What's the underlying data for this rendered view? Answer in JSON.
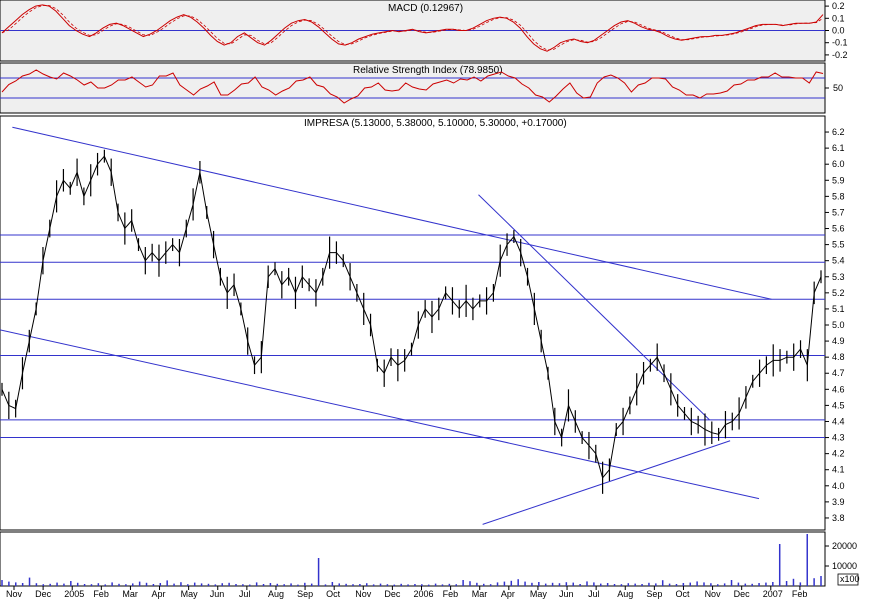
{
  "chart_data": [
    {
      "type": "line",
      "title": "MACD (0.12967)",
      "yticks": [
        "0.2",
        "0.1",
        "0.0",
        "-0.1",
        "-0.2"
      ],
      "ylim": [
        -0.25,
        0.25
      ],
      "zero_line": 0.0,
      "series": [
        {
          "values": [
            -0.02,
            0.03,
            0.08,
            0.13,
            0.17,
            0.2,
            0.21,
            0.2,
            0.16,
            0.1,
            0.04,
            0.0,
            -0.03,
            -0.05,
            -0.02,
            0.02,
            0.05,
            0.06,
            0.04,
            0.01,
            -0.02,
            -0.05,
            -0.03,
            0.0,
            0.04,
            0.08,
            0.11,
            0.13,
            0.11,
            0.07,
            0.02,
            -0.04,
            -0.09,
            -0.12,
            -0.1,
            -0.05,
            -0.02,
            -0.06,
            -0.1,
            -0.12,
            -0.08,
            -0.03,
            0.02,
            0.06,
            0.08,
            0.09,
            0.07,
            0.03,
            -0.02,
            -0.07,
            -0.11,
            -0.12,
            -0.1,
            -0.07,
            -0.05,
            -0.03,
            -0.02,
            -0.01,
            0.0,
            -0.01,
            0.0,
            0.01,
            -0.01,
            -0.02,
            -0.01,
            0.0,
            0.01,
            0.01,
            0.0,
            0.0,
            0.02,
            0.05,
            0.08,
            0.1,
            0.11,
            0.1,
            0.07,
            0.02,
            -0.05,
            -0.11,
            -0.15,
            -0.17,
            -0.14,
            -0.1,
            -0.08,
            -0.07,
            -0.09,
            -0.1,
            -0.08,
            -0.04,
            0.0,
            0.04,
            0.07,
            0.08,
            0.06,
            0.03,
            0.01,
            0.0,
            -0.02,
            -0.05,
            -0.07,
            -0.08,
            -0.07,
            -0.06,
            -0.05,
            -0.05,
            -0.04,
            -0.04,
            -0.03,
            -0.02,
            0.0,
            0.02,
            0.04,
            0.05,
            0.05,
            0.05,
            0.04,
            0.05,
            0.06,
            0.06,
            0.06,
            0.07,
            0.13
          ]
        }
      ]
    },
    {
      "type": "line",
      "title": "Relative Strength Index (78.9850)",
      "yticks": [
        "50"
      ],
      "ylim": [
        0,
        100
      ],
      "series": [
        {
          "values": [
            42,
            55,
            68,
            74,
            80,
            82,
            78,
            70,
            72,
            80,
            76,
            62,
            56,
            60,
            54,
            50,
            58,
            62,
            66,
            70,
            66,
            52,
            58,
            70,
            74,
            78,
            60,
            46,
            38,
            44,
            54,
            60,
            40,
            36,
            48,
            54,
            60,
            70,
            56,
            46,
            38,
            40,
            50,
            62,
            70,
            72,
            58,
            48,
            38,
            30,
            24,
            28,
            36,
            46,
            52,
            58,
            50,
            44,
            48,
            56,
            52,
            46,
            50,
            58,
            64,
            62,
            60,
            66,
            70,
            72,
            66,
            70,
            78,
            80,
            78,
            70,
            60,
            46,
            36,
            30,
            26,
            34,
            50,
            56,
            40,
            28,
            36,
            60,
            74,
            72,
            70,
            58,
            46,
            56,
            62,
            66,
            70,
            66,
            56,
            46,
            38,
            32,
            30,
            36,
            42,
            40,
            46,
            52,
            58,
            64,
            70,
            72,
            74,
            76,
            72,
            70,
            74,
            70,
            62,
            78,
            79
          ]
        }
      ]
    },
    {
      "type": "line",
      "title": "IMPRESA (5.13000, 5.38000, 5.10000, 5.30000, +0.17000)",
      "yticks": [
        "6.2",
        "6.1",
        "6.0",
        "5.9",
        "5.8",
        "5.7",
        "5.6",
        "5.5",
        "5.4",
        "5.3",
        "5.2",
        "5.1",
        "5.0",
        "4.9",
        "4.8",
        "4.7",
        "4.6",
        "4.5",
        "4.4",
        "4.3",
        "4.2",
        "4.1",
        "4.0",
        "3.9",
        "3.8"
      ],
      "ylim": [
        3.75,
        6.25
      ],
      "horizontal_levels": [
        5.56,
        5.39,
        5.16,
        4.81,
        4.41,
        4.3
      ],
      "trendlines": [
        {
          "x": [
            0.015,
            0.59
          ],
          "y": [
            6.23,
            5.56
          ]
        },
        {
          "x": [
            0.59,
            0.935
          ],
          "y": [
            5.56,
            5.16
          ]
        },
        {
          "x": [
            0.0,
            0.92
          ],
          "y": [
            4.97,
            3.92
          ]
        },
        {
          "x": [
            0.58,
            0.86
          ],
          "y": [
            5.81,
            4.41
          ]
        },
        {
          "x": [
            0.585,
            0.885
          ],
          "y": [
            3.76,
            4.28
          ]
        }
      ],
      "series": [
        {
          "name": "IMPRESA",
          "values": [
            4.6,
            4.5,
            4.48,
            4.7,
            4.9,
            5.1,
            5.4,
            5.6,
            5.8,
            5.9,
            5.85,
            5.95,
            5.8,
            5.9,
            6.0,
            6.05,
            5.95,
            5.7,
            5.6,
            5.65,
            5.5,
            5.4,
            5.45,
            5.4,
            5.45,
            5.5,
            5.45,
            5.6,
            5.75,
            5.95,
            5.7,
            5.5,
            5.3,
            5.2,
            5.25,
            5.1,
            4.9,
            4.75,
            4.8,
            5.3,
            5.35,
            5.25,
            5.3,
            5.2,
            5.3,
            5.25,
            5.2,
            5.3,
            5.45,
            5.45,
            5.4,
            5.3,
            5.2,
            5.1,
            5.0,
            4.75,
            4.7,
            4.8,
            4.75,
            4.78,
            4.85,
            5.0,
            5.1,
            5.05,
            5.1,
            5.2,
            5.15,
            5.1,
            5.15,
            5.1,
            5.15,
            5.15,
            5.2,
            5.4,
            5.5,
            5.55,
            5.45,
            5.3,
            5.1,
            4.9,
            4.7,
            4.4,
            4.3,
            4.5,
            4.4,
            4.3,
            4.25,
            4.2,
            4.05,
            4.1,
            4.35,
            4.4,
            4.5,
            4.6,
            4.7,
            4.75,
            4.8,
            4.7,
            4.6,
            4.5,
            4.45,
            4.4,
            4.38,
            4.35,
            4.33,
            4.32,
            4.38,
            4.4,
            4.45,
            4.55,
            4.65,
            4.7,
            4.75,
            4.78,
            4.78,
            4.8,
            4.8,
            4.85,
            4.75,
            5.2,
            5.3
          ]
        }
      ]
    },
    {
      "type": "bar",
      "title": "",
      "yticks": [
        "20000",
        "10000"
      ],
      "ylim": [
        0,
        27000
      ],
      "unit_label": "x100",
      "values": [
        3000,
        2200,
        1800,
        1500,
        4200,
        1400,
        900,
        1100,
        1700,
        1200,
        2500,
        1600,
        1000,
        900,
        1400,
        800,
        1800,
        1100,
        900,
        1300,
        2200,
        1600,
        1000,
        1500,
        2800,
        1200,
        1900,
        900,
        1700,
        1300,
        1100,
        800,
        1400,
        1600,
        1000,
        900,
        700,
        1800,
        1000,
        1500,
        1100,
        900,
        1300,
        700,
        1600,
        1200,
        14000,
        800,
        2000,
        1300,
        1100,
        900,
        1000,
        1400,
        800,
        1200,
        900,
        700,
        1100,
        800,
        1000,
        900,
        700,
        1200,
        800,
        1100,
        900,
        3000,
        2400,
        1600,
        1100,
        900,
        1800,
        2200,
        2600,
        3400,
        2200,
        1600,
        2000,
        1200,
        1600,
        1400,
        1900,
        1700,
        1000,
        2300,
        1800,
        1200,
        1500,
        1000,
        900,
        1400,
        1200,
        1000,
        1600,
        1300,
        2900,
        1200,
        1000,
        1500,
        1700,
        2300,
        1800,
        1400,
        900,
        1300,
        3000,
        1700,
        1200,
        1100,
        1500,
        1700,
        2000,
        21000,
        2500,
        3600,
        1800,
        26000,
        3900,
        5000
      ],
      "xticks": [
        "Nov",
        "Dec",
        "2005",
        "Feb",
        "Mar",
        "Apr",
        "May",
        "Jun",
        "Jul",
        "Aug",
        "Sep",
        "Oct",
        "Nov",
        "Dec",
        "2006",
        "Feb",
        "Mar",
        "Apr",
        "May",
        "Jun",
        "Jul",
        "Aug",
        "Sep",
        "Oct",
        "Nov",
        "Dec",
        "2007",
        "Feb"
      ]
    }
  ]
}
